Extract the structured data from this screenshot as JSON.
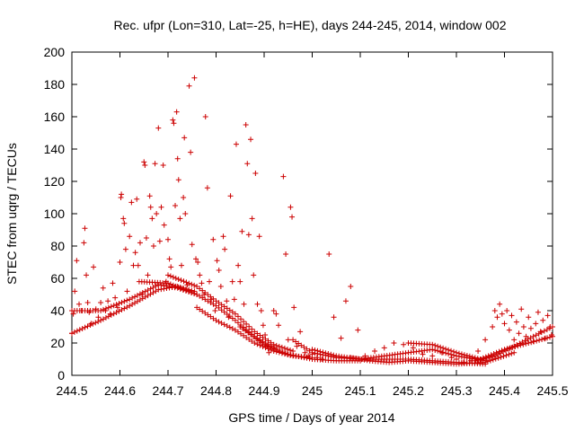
{
  "chart_data": {
    "type": "scatter",
    "title": "Rec. ufpr (Lon=310, Lat=-25, h=HE), days 244-245, 2014, window 002",
    "xlabel": "GPS time / Days of year 2014",
    "ylabel": "STEC from uqrg / TECUs",
    "xlim": [
      244.5,
      245.5
    ],
    "ylim": [
      0,
      200
    ],
    "xticks": [
      244.5,
      244.6,
      244.7,
      244.8,
      244.9,
      245,
      245.1,
      245.2,
      245.3,
      245.4,
      245.5
    ],
    "xtick_labels": [
      "244.5",
      "244.6",
      "244.7",
      "244.8",
      "244.9",
      "245",
      "245.1",
      "245.2",
      "245.3",
      "245.4",
      "245.5"
    ],
    "yticks": [
      0,
      20,
      40,
      60,
      80,
      100,
      120,
      140,
      160,
      180,
      200
    ],
    "ytick_labels": [
      "0",
      "20",
      "40",
      "60",
      "80",
      "100",
      "120",
      "140",
      "160",
      "180",
      "200"
    ],
    "grid": false,
    "legend": "none",
    "marker": "plus",
    "color": "#cc0000",
    "series": [
      {
        "points": [
          [
            244.5,
            26
          ],
          [
            244.503,
            38
          ],
          [
            244.506,
            52
          ],
          [
            244.51,
            71
          ],
          [
            244.515,
            44
          ],
          [
            244.52,
            40
          ],
          [
            244.525,
            82
          ],
          [
            244.527,
            91
          ],
          [
            244.53,
            62
          ],
          [
            244.533,
            45
          ],
          [
            244.536,
            39
          ],
          [
            244.54,
            32
          ],
          [
            244.545,
            67
          ],
          [
            244.55,
            41
          ],
          [
            244.555,
            36
          ],
          [
            244.56,
            45
          ],
          [
            244.565,
            54
          ],
          [
            244.57,
            40
          ],
          [
            244.575,
            46
          ],
          [
            244.58,
            38
          ],
          [
            244.585,
            57
          ],
          [
            244.59,
            48
          ],
          [
            244.595,
            42
          ],
          [
            244.6,
            70
          ],
          [
            244.602,
            110
          ],
          [
            244.603,
            112
          ],
          [
            244.607,
            97
          ],
          [
            244.609,
            94
          ],
          [
            244.612,
            78
          ],
          [
            244.615,
            52
          ],
          [
            244.62,
            86
          ],
          [
            244.624,
            107
          ],
          [
            244.628,
            68
          ],
          [
            244.632,
            76
          ],
          [
            244.635,
            109
          ],
          [
            244.638,
            68
          ],
          [
            244.642,
            82
          ],
          [
            244.646,
            50
          ],
          [
            244.65,
            132
          ],
          [
            244.652,
            130
          ],
          [
            244.655,
            85
          ],
          [
            244.658,
            62
          ],
          [
            244.662,
            111
          ],
          [
            244.664,
            104
          ],
          [
            244.667,
            97
          ],
          [
            244.67,
            80
          ],
          [
            244.673,
            131
          ],
          [
            244.676,
            100
          ],
          [
            244.68,
            153
          ],
          [
            244.683,
            83
          ],
          [
            244.686,
            104
          ],
          [
            244.69,
            130
          ],
          [
            244.692,
            93
          ],
          [
            244.696,
            58
          ],
          [
            244.7,
            84
          ],
          [
            244.703,
            72
          ],
          [
            244.706,
            67
          ],
          [
            244.71,
            158
          ],
          [
            244.712,
            156
          ],
          [
            244.715,
            105
          ],
          [
            244.718,
            163
          ],
          [
            244.72,
            134
          ],
          [
            244.722,
            121
          ],
          [
            244.725,
            97
          ],
          [
            244.728,
            68
          ],
          [
            244.732,
            110
          ],
          [
            244.734,
            147
          ],
          [
            244.736,
            100
          ],
          [
            244.74,
            56
          ],
          [
            244.744,
            179
          ],
          [
            244.747,
            138
          ],
          [
            244.75,
            81
          ],
          [
            244.755,
            184
          ],
          [
            244.758,
            72
          ],
          [
            244.762,
            70
          ],
          [
            244.766,
            62
          ],
          [
            244.77,
            57
          ],
          [
            244.775,
            50
          ],
          [
            244.778,
            160
          ],
          [
            244.782,
            116
          ],
          [
            244.786,
            58
          ],
          [
            244.79,
            47
          ],
          [
            244.794,
            84
          ],
          [
            244.798,
            40
          ],
          [
            244.802,
            71
          ],
          [
            244.806,
            65
          ],
          [
            244.81,
            55
          ],
          [
            244.815,
            86
          ],
          [
            244.818,
            78
          ],
          [
            244.822,
            46
          ],
          [
            244.826,
            36
          ],
          [
            244.83,
            111
          ],
          [
            244.834,
            58
          ],
          [
            244.838,
            47
          ],
          [
            244.842,
            143
          ],
          [
            244.846,
            68
          ],
          [
            244.85,
            58
          ],
          [
            244.854,
            89
          ],
          [
            244.858,
            44
          ],
          [
            244.862,
            155
          ],
          [
            244.865,
            131
          ],
          [
            244.868,
            87
          ],
          [
            244.872,
            146
          ],
          [
            244.875,
            97
          ],
          [
            244.878,
            62
          ],
          [
            244.882,
            125
          ],
          [
            244.886,
            44
          ],
          [
            244.89,
            86
          ],
          [
            244.894,
            40
          ],
          [
            244.898,
            31
          ],
          [
            244.902,
            25
          ],
          [
            244.906,
            18
          ],
          [
            244.91,
            14
          ],
          [
            244.92,
            40
          ],
          [
            244.925,
            38
          ],
          [
            244.93,
            31
          ],
          [
            244.94,
            123
          ],
          [
            244.945,
            75
          ],
          [
            244.95,
            22
          ],
          [
            244.955,
            104
          ],
          [
            244.958,
            98
          ],
          [
            244.962,
            42
          ],
          [
            244.968,
            18
          ],
          [
            244.975,
            27
          ],
          [
            244.985,
            14
          ],
          [
            244.992,
            12
          ],
          [
            245.0,
            13
          ],
          [
            245.01,
            11
          ],
          [
            245.02,
            10
          ],
          [
            245.035,
            75
          ],
          [
            245.045,
            36
          ],
          [
            245.06,
            23
          ],
          [
            245.07,
            46
          ],
          [
            245.08,
            55
          ],
          [
            245.095,
            28
          ],
          [
            245.11,
            12
          ],
          [
            245.13,
            15
          ],
          [
            245.15,
            17
          ],
          [
            245.17,
            20
          ],
          [
            245.19,
            19
          ],
          [
            245.21,
            17
          ],
          [
            245.23,
            13
          ],
          [
            245.25,
            12
          ],
          [
            245.27,
            14
          ],
          [
            245.29,
            11
          ],
          [
            245.3,
            10
          ],
          [
            245.315,
            8
          ],
          [
            245.33,
            9
          ],
          [
            245.345,
            15
          ],
          [
            245.36,
            22
          ],
          [
            245.375,
            30
          ],
          [
            245.38,
            40
          ],
          [
            245.385,
            36
          ],
          [
            245.39,
            44
          ],
          [
            245.395,
            38
          ],
          [
            245.4,
            32
          ],
          [
            245.405,
            40
          ],
          [
            245.41,
            28
          ],
          [
            245.415,
            37
          ],
          [
            245.42,
            22
          ],
          [
            245.425,
            33
          ],
          [
            245.43,
            26
          ],
          [
            245.435,
            41
          ],
          [
            245.44,
            30
          ],
          [
            245.445,
            24
          ],
          [
            245.45,
            36
          ],
          [
            245.455,
            29
          ],
          [
            245.46,
            21
          ],
          [
            245.465,
            32
          ],
          [
            245.47,
            39
          ],
          [
            245.475,
            27
          ],
          [
            245.48,
            34
          ],
          [
            245.485,
            23
          ],
          [
            245.49,
            37
          ],
          [
            245.495,
            30
          ],
          [
            245.498,
            25
          ]
        ],
        "tracks": [
          {
            "x0": 244.5,
            "x1": 244.755,
            "points": [
              [
                244.5,
                26
              ],
              [
                244.56,
                34
              ],
              [
                244.62,
                43
              ],
              [
                244.68,
                53
              ],
              [
                244.72,
                55
              ],
              [
                244.755,
                52
              ]
            ]
          },
          {
            "x0": 244.5,
            "x1": 244.76,
            "points": [
              [
                244.5,
                40
              ],
              [
                244.56,
                40
              ],
              [
                244.62,
                47
              ],
              [
                244.68,
                56
              ],
              [
                244.72,
                54
              ],
              [
                244.76,
                50
              ]
            ]
          },
          {
            "x0": 244.64,
            "x1": 244.92,
            "points": [
              [
                244.64,
                58
              ],
              [
                244.7,
                57
              ],
              [
                244.76,
                50
              ],
              [
                244.8,
                43
              ],
              [
                244.84,
                34
              ],
              [
                244.88,
                24
              ],
              [
                244.92,
                17
              ]
            ]
          },
          {
            "x0": 244.7,
            "x1": 244.96,
            "points": [
              [
                244.7,
                62
              ],
              [
                244.76,
                55
              ],
              [
                244.8,
                46
              ],
              [
                244.84,
                38
              ],
              [
                244.88,
                27
              ],
              [
                244.92,
                19
              ],
              [
                244.96,
                15
              ]
            ]
          },
          {
            "x0": 244.76,
            "x1": 245.0,
            "points": [
              [
                244.76,
                42
              ],
              [
                244.8,
                34
              ],
              [
                244.84,
                28
              ],
              [
                244.88,
                20
              ],
              [
                244.92,
                15
              ],
              [
                244.96,
                12
              ],
              [
                245.0,
                11
              ]
            ]
          },
          {
            "x0": 244.85,
            "x1": 245.1,
            "points": [
              [
                244.85,
                30
              ],
              [
                244.9,
                19
              ],
              [
                244.95,
                13
              ],
              [
                245.0,
                10
              ],
              [
                245.05,
                9
              ],
              [
                245.1,
                9
              ]
            ]
          },
          {
            "x0": 244.96,
            "x1": 245.36,
            "points": [
              [
                244.96,
                22
              ],
              [
                245.0,
                14
              ],
              [
                245.05,
                11
              ],
              [
                245.1,
                10
              ],
              [
                245.15,
                10
              ],
              [
                245.2,
                10
              ],
              [
                245.25,
                9
              ],
              [
                245.3,
                8
              ],
              [
                245.36,
                7
              ]
            ]
          },
          {
            "x0": 245.0,
            "x1": 245.36,
            "points": [
              [
                245.0,
                16
              ],
              [
                245.05,
                12
              ],
              [
                245.1,
                10
              ],
              [
                245.15,
                12
              ],
              [
                245.2,
                14
              ],
              [
                245.25,
                16
              ],
              [
                245.3,
                12
              ],
              [
                245.36,
                9
              ]
            ]
          },
          {
            "x0": 245.08,
            "x1": 245.42,
            "points": [
              [
                245.08,
                11
              ],
              [
                245.12,
                9
              ],
              [
                245.16,
                8
              ],
              [
                245.2,
                9
              ],
              [
                245.25,
                8
              ],
              [
                245.3,
                7
              ],
              [
                245.36,
                8
              ],
              [
                245.42,
                14
              ]
            ]
          },
          {
            "x0": 245.2,
            "x1": 245.5,
            "points": [
              [
                245.2,
                20
              ],
              [
                245.25,
                19
              ],
              [
                245.3,
                14
              ],
              [
                245.35,
                10
              ],
              [
                245.4,
                16
              ],
              [
                245.45,
                20
              ],
              [
                245.5,
                24
              ]
            ]
          },
          {
            "x0": 245.34,
            "x1": 245.5,
            "points": [
              [
                245.34,
                9
              ],
              [
                245.38,
                12
              ],
              [
                245.42,
                18
              ],
              [
                245.46,
                24
              ],
              [
                245.5,
                30
              ]
            ]
          }
        ]
      }
    ]
  }
}
